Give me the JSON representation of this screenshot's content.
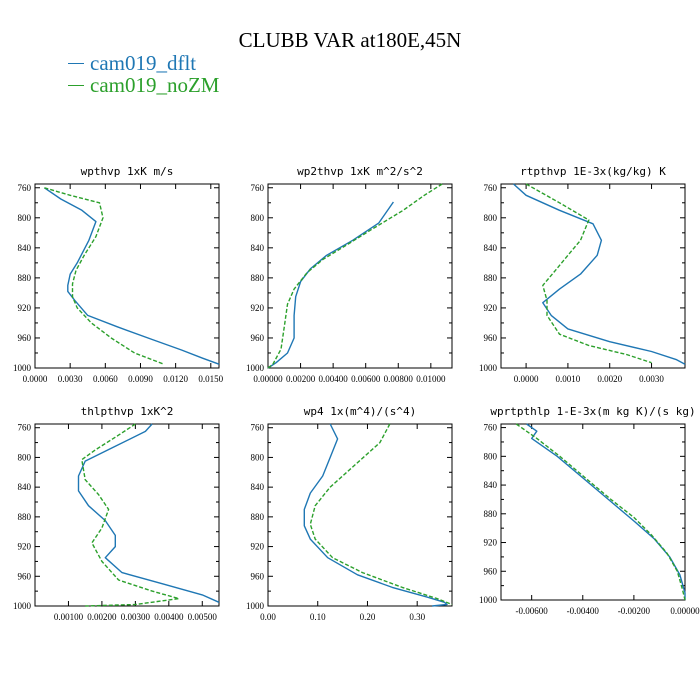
{
  "title": "CLUBB VAR at180E,45N",
  "legend": [
    {
      "label": "cam019_dflt",
      "color": "#1f77b4"
    },
    {
      "label": "cam019_noZM",
      "color": "#2ca02c"
    }
  ],
  "chart_data": [
    {
      "type": "line",
      "title": "wpthvp  1xK m/s",
      "xlim": [
        0,
        0.0157
      ],
      "ylim": [
        1000,
        755
      ],
      "xticks": [
        0,
        0.003,
        0.006,
        0.009,
        0.012,
        0.015
      ],
      "xtick_labels": [
        "0.0000",
        "0.0030",
        "0.0060",
        "0.0090",
        "0.0120",
        "0.0150"
      ],
      "yticks": [
        760,
        800,
        840,
        880,
        920,
        960,
        1000
      ],
      "ytick_labels": [
        "760",
        "800",
        "840",
        "880",
        "920",
        "960",
        "1000"
      ],
      "series": [
        {
          "name": "cam019_dflt",
          "points": [
            [
              0.0008,
              760
            ],
            [
              0.0022,
              775
            ],
            [
              0.004,
              790
            ],
            [
              0.0052,
              805
            ],
            [
              0.0046,
              830
            ],
            [
              0.0036,
              860
            ],
            [
              0.003,
              875
            ],
            [
              0.0028,
              890
            ],
            [
              0.0028,
              898
            ],
            [
              0.0034,
              910
            ],
            [
              0.0045,
              930
            ],
            [
              0.007,
              945
            ],
            [
              0.01,
              962
            ],
            [
              0.0125,
              976
            ],
            [
              0.0143,
              987
            ],
            [
              0.0157,
              995
            ]
          ]
        },
        {
          "name": "cam019_noZM",
          "points": [
            [
              0.0008,
              760
            ],
            [
              0.003,
              770
            ],
            [
              0.0055,
              780
            ],
            [
              0.0058,
              800
            ],
            [
              0.0052,
              825
            ],
            [
              0.0042,
              850
            ],
            [
              0.0035,
              870
            ],
            [
              0.0032,
              888
            ],
            [
              0.0032,
              905
            ],
            [
              0.0036,
              920
            ],
            [
              0.0048,
              940
            ],
            [
              0.0065,
              960
            ],
            [
              0.0085,
              980
            ],
            [
              0.011,
              995
            ]
          ]
        }
      ]
    },
    {
      "type": "line",
      "title": "wp2thvp  1xK m^2/s^2",
      "xlim": [
        0,
        0.0113
      ],
      "ylim": [
        1000,
        755
      ],
      "xticks": [
        0,
        0.002,
        0.004,
        0.006,
        0.008,
        0.01
      ],
      "xtick_labels": [
        "0.00000",
        "0.00200",
        "0.00400",
        "0.00600",
        "0.00800",
        "0.01000"
      ],
      "yticks": [
        760,
        800,
        840,
        880,
        920,
        960,
        1000
      ],
      "ytick_labels": [
        "760",
        "800",
        "840",
        "880",
        "920",
        "960",
        "1000"
      ],
      "series": [
        {
          "name": "cam019_dflt",
          "points": [
            [
              0.0077,
              779
            ],
            [
              0.0068,
              807
            ],
            [
              0.0052,
              830
            ],
            [
              0.0036,
              850
            ],
            [
              0.0026,
              868
            ],
            [
              0.002,
              885
            ],
            [
              0.0017,
              905
            ],
            [
              0.0016,
              930
            ],
            [
              0.0016,
              960
            ],
            [
              0.0012,
              980
            ],
            [
              0.0005,
              993
            ],
            [
              0.0,
              1000
            ]
          ]
        },
        {
          "name": "cam019_noZM",
          "points": [
            [
              0.0107,
              755
            ],
            [
              0.0096,
              770
            ],
            [
              0.0083,
              790
            ],
            [
              0.0064,
              815
            ],
            [
              0.0047,
              838
            ],
            [
              0.0034,
              855
            ],
            [
              0.0024,
              873
            ],
            [
              0.0016,
              895
            ],
            [
              0.0012,
              915
            ],
            [
              0.001,
              945
            ],
            [
              0.0008,
              975
            ],
            [
              0.0003,
              995
            ],
            [
              0.0,
              1000
            ]
          ]
        }
      ]
    },
    {
      "type": "line",
      "title": "rtpthvp  1E-3x(kg/kg) K",
      "xlim": [
        -0.0006,
        0.0038
      ],
      "ylim": [
        1000,
        755
      ],
      "xticks": [
        0,
        0.001,
        0.002,
        0.003
      ],
      "xtick_labels": [
        "0.0000",
        "0.0010",
        "0.0020",
        "0.0030"
      ],
      "yticks": [
        760,
        800,
        840,
        880,
        920,
        960,
        1000
      ],
      "ytick_labels": [
        "760",
        "800",
        "840",
        "880",
        "920",
        "960",
        "1000"
      ],
      "series": [
        {
          "name": "cam019_dflt",
          "points": [
            [
              -0.0003,
              755
            ],
            [
              0.0,
              770
            ],
            [
              0.0008,
              790
            ],
            [
              0.0016,
              808
            ],
            [
              0.0018,
              830
            ],
            [
              0.0017,
              850
            ],
            [
              0.0013,
              875
            ],
            [
              0.0008,
              895
            ],
            [
              0.0004,
              913
            ],
            [
              0.0006,
              930
            ],
            [
              0.001,
              948
            ],
            [
              0.002,
              965
            ],
            [
              0.003,
              978
            ],
            [
              0.0036,
              989
            ],
            [
              0.0038,
              995
            ]
          ]
        },
        {
          "name": "cam019_noZM",
          "points": [
            [
              0.0,
              755
            ],
            [
              0.0008,
              780
            ],
            [
              0.0015,
              803
            ],
            [
              0.0013,
              830
            ],
            [
              0.001,
              850
            ],
            [
              0.0007,
              870
            ],
            [
              0.0004,
              890
            ],
            [
              0.0005,
              910
            ],
            [
              0.0005,
              930
            ],
            [
              0.0008,
              955
            ],
            [
              0.0015,
              970
            ],
            [
              0.0024,
              982
            ],
            [
              0.003,
              993
            ]
          ]
        }
      ]
    },
    {
      "type": "line",
      "title": "thlpthvp  1xK^2",
      "xlim": [
        0,
        0.0055
      ],
      "ylim": [
        1000,
        755
      ],
      "xticks": [
        0.001,
        0.002,
        0.003,
        0.004,
        0.005
      ],
      "xtick_labels": [
        "0.00100",
        "0.00200",
        "0.00300",
        "0.00400",
        "0.00500"
      ],
      "yticks": [
        760,
        800,
        840,
        880,
        920,
        960,
        1000
      ],
      "ytick_labels": [
        "760",
        "800",
        "840",
        "880",
        "920",
        "960",
        "1000"
      ],
      "series": [
        {
          "name": "cam019_dflt",
          "points": [
            [
              0.0035,
              755
            ],
            [
              0.0033,
              765
            ],
            [
              0.0024,
              785
            ],
            [
              0.0015,
              805
            ],
            [
              0.0013,
              825
            ],
            [
              0.0013,
              845
            ],
            [
              0.0016,
              865
            ],
            [
              0.0021,
              885
            ],
            [
              0.0024,
              905
            ],
            [
              0.0024,
              920
            ],
            [
              0.0021,
              935
            ],
            [
              0.0026,
              955
            ],
            [
              0.0038,
              970
            ],
            [
              0.005,
              985
            ],
            [
              0.0055,
              995
            ]
          ]
        },
        {
          "name": "cam019_noZM",
          "points": [
            [
              0.003,
              755
            ],
            [
              0.0025,
              770
            ],
            [
              0.0018,
              790
            ],
            [
              0.0014,
              803
            ],
            [
              0.0015,
              830
            ],
            [
              0.0019,
              850
            ],
            [
              0.0022,
              870
            ],
            [
              0.002,
              895
            ],
            [
              0.0017,
              915
            ],
            [
              0.002,
              940
            ],
            [
              0.0025,
              965
            ],
            [
              0.0035,
              980
            ],
            [
              0.0043,
              990
            ],
            [
              0.003,
              998
            ],
            [
              0.0015,
              1000
            ]
          ]
        }
      ]
    },
    {
      "type": "line",
      "title": "wp4  1x(m^4)/(s^4)",
      "xlim": [
        0,
        0.37
      ],
      "ylim": [
        1000,
        755
      ],
      "xticks": [
        0,
        0.1,
        0.2,
        0.3
      ],
      "xtick_labels": [
        "0.00",
        "0.10",
        "0.20",
        "0.30"
      ],
      "yticks": [
        760,
        800,
        840,
        880,
        920,
        960,
        1000
      ],
      "ytick_labels": [
        "760",
        "800",
        "840",
        "880",
        "920",
        "960",
        "1000"
      ],
      "series": [
        {
          "name": "cam019_dflt",
          "points": [
            [
              0.125,
              755
            ],
            [
              0.14,
              775
            ],
            [
              0.125,
              800
            ],
            [
              0.11,
              825
            ],
            [
              0.085,
              848
            ],
            [
              0.073,
              870
            ],
            [
              0.073,
              892
            ],
            [
              0.085,
              910
            ],
            [
              0.12,
              935
            ],
            [
              0.18,
              958
            ],
            [
              0.25,
              975
            ],
            [
              0.32,
              988
            ],
            [
              0.355,
              995
            ],
            [
              0.36,
              998
            ],
            [
              0.33,
              1000
            ]
          ]
        },
        {
          "name": "cam019_noZM",
          "points": [
            [
              0.245,
              755
            ],
            [
              0.225,
              780
            ],
            [
              0.175,
              810
            ],
            [
              0.125,
              840
            ],
            [
              0.095,
              865
            ],
            [
              0.085,
              890
            ],
            [
              0.095,
              910
            ],
            [
              0.13,
              935
            ],
            [
              0.19,
              955
            ],
            [
              0.27,
              975
            ],
            [
              0.34,
              990
            ],
            [
              0.37,
              998
            ]
          ]
        }
      ]
    },
    {
      "type": "line",
      "title": "wprtpthlp  1-E-3x(m kg K)/(s kg)",
      "xlim": [
        -0.0072,
        0.0
      ],
      "ylim": [
        1000,
        755
      ],
      "xticks": [
        -0.006,
        -0.004,
        -0.002,
        0.0
      ],
      "xtick_labels": [
        "-0.00600",
        "-0.00400",
        "-0.00200",
        "0.00000"
      ],
      "yticks": [
        760,
        800,
        840,
        880,
        920,
        960,
        1000
      ],
      "ytick_labels": [
        "760",
        "800",
        "840",
        "880",
        "920",
        "960",
        "1000"
      ],
      "series": [
        {
          "name": "cam019_dflt",
          "points": [
            [
              -0.0062,
              755
            ],
            [
              -0.0058,
              765
            ],
            [
              -0.006,
              775
            ],
            [
              -0.005,
              800
            ],
            [
              -0.004,
              830
            ],
            [
              -0.003,
              860
            ],
            [
              -0.002,
              890
            ],
            [
              -0.0012,
              915
            ],
            [
              -0.0006,
              940
            ],
            [
              -0.0002,
              965
            ],
            [
              0.0,
              990
            ],
            [
              0.0,
              1000
            ]
          ]
        },
        {
          "name": "cam019_noZM",
          "points": [
            [
              -0.0066,
              755
            ],
            [
              -0.0058,
              775
            ],
            [
              -0.0049,
              800
            ],
            [
              -0.0039,
              830
            ],
            [
              -0.0029,
              860
            ],
            [
              -0.002,
              885
            ],
            [
              -0.0013,
              910
            ],
            [
              -0.0007,
              935
            ],
            [
              -0.0003,
              960
            ],
            [
              -0.0001,
              985
            ],
            [
              0.0,
              1000
            ]
          ]
        }
      ]
    }
  ]
}
